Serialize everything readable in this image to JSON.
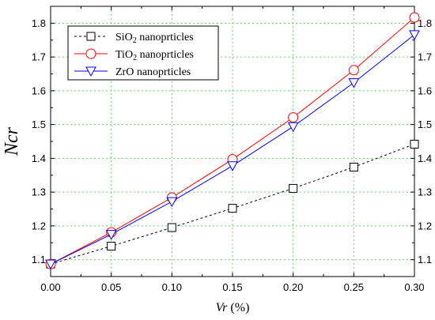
{
  "chart_data": {
    "type": "line",
    "xlabel": {
      "var": "Vr",
      "unit": " (%)"
    },
    "ylabel": "Ncr",
    "xlim": [
      0,
      0.3
    ],
    "ylim": [
      1.05,
      1.85
    ],
    "grid": true,
    "legend_position": "top-left",
    "x_ticks": [
      "0.00",
      "0.05",
      "0.10",
      "0.15",
      "0.20",
      "0.25",
      "0.30"
    ],
    "y_ticks": [
      "1.1",
      "1.2",
      "1.3",
      "1.4",
      "1.5",
      "1.6",
      "1.7",
      "1.8"
    ],
    "x": [
      0.0,
      0.05,
      0.1,
      0.15,
      0.2,
      0.25,
      0.3
    ],
    "series": [
      {
        "name": "SiO2 nanoprticles",
        "legend": {
          "base": "SiO",
          "sub": "2",
          "rest": " nanoprticles"
        },
        "values": [
          1.087,
          1.14,
          1.195,
          1.252,
          1.311,
          1.374,
          1.442
        ],
        "color": "#000000",
        "marker": "square",
        "dash": "dashed"
      },
      {
        "name": "TiO2 nanoprticles",
        "legend": {
          "base": "TiO",
          "sub": "2",
          "rest": " nanoprticles"
        },
        "values": [
          1.087,
          1.181,
          1.284,
          1.397,
          1.521,
          1.661,
          1.817
        ],
        "color": "#ff0000",
        "marker": "circle",
        "dash": "solid"
      },
      {
        "name": "ZrO nanoprticles",
        "legend": {
          "base": "ZrO nanoprticles",
          "sub": "",
          "rest": ""
        },
        "values": [
          1.087,
          1.175,
          1.272,
          1.378,
          1.494,
          1.624,
          1.766
        ],
        "color": "#0000ff",
        "marker": "triangle-down",
        "dash": "solid"
      }
    ]
  }
}
